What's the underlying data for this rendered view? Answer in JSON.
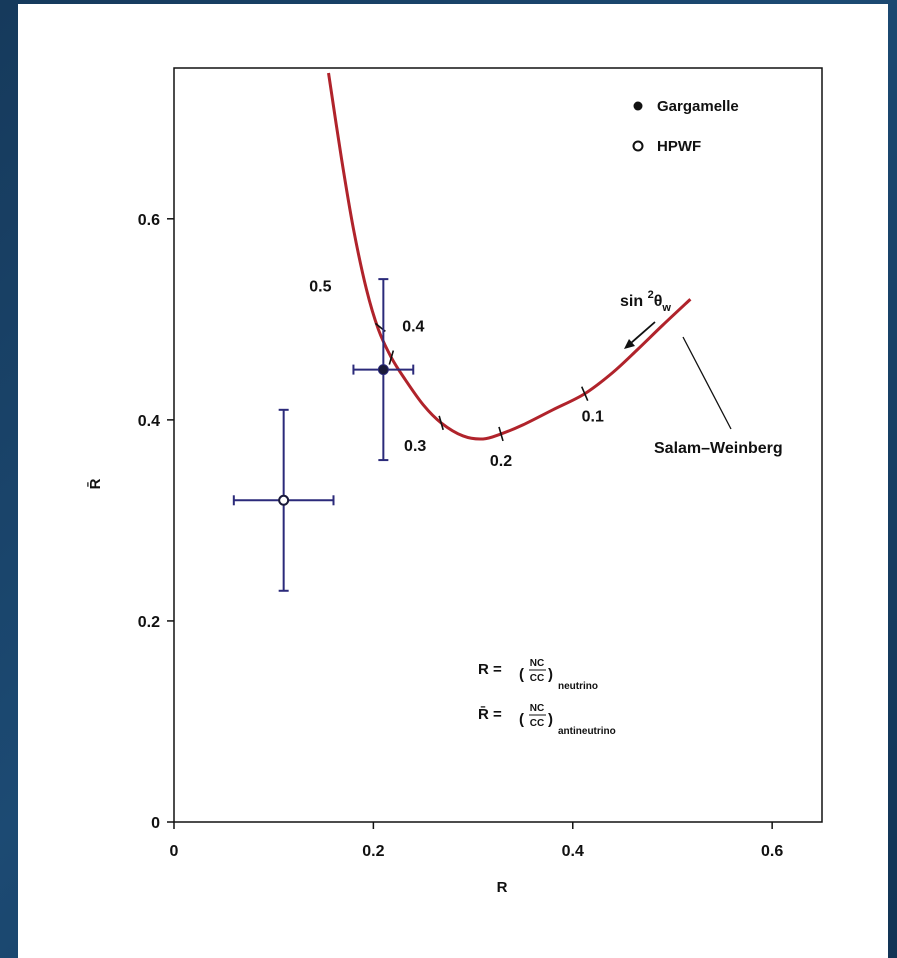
{
  "colors": {
    "curve": "#b0232b",
    "error_bars": "#2b2a7a",
    "axis": "#111111",
    "background": "#ffffff"
  },
  "chart_data": {
    "type": "scatter",
    "xlabel": "R",
    "ylabel": "R̄",
    "xlim": [
      0,
      0.65
    ],
    "ylim": [
      0,
      0.75
    ],
    "xticks": [
      0,
      0.2,
      0.4,
      0.6
    ],
    "yticks": [
      0,
      0.2,
      0.4,
      0.6
    ],
    "xtick_labels": [
      "0",
      "0.2",
      "0.4",
      "0.6"
    ],
    "ytick_labels": [
      "0",
      "0.2",
      "0.4",
      "0.6"
    ],
    "grid": false,
    "legend_position": "top-right",
    "series": [
      {
        "name": "Gargamelle",
        "marker": "filled-circle",
        "points": [
          {
            "x": 0.21,
            "y": 0.45,
            "xerr": 0.03,
            "yerr_low": 0.09,
            "yerr_high": 0.09
          }
        ]
      },
      {
        "name": "HPWF",
        "marker": "open-circle",
        "points": [
          {
            "x": 0.11,
            "y": 0.32,
            "xerr": 0.05,
            "yerr_low": 0.09,
            "yerr_high": 0.09
          }
        ]
      },
      {
        "name": "Salam–Weinberg",
        "type": "line",
        "points": [
          {
            "x": 0.155,
            "y": 0.745
          },
          {
            "x": 0.168,
            "y": 0.66
          },
          {
            "x": 0.18,
            "y": 0.59
          },
          {
            "x": 0.193,
            "y": 0.53
          },
          {
            "x": 0.205,
            "y": 0.49
          },
          {
            "x": 0.218,
            "y": 0.462
          },
          {
            "x": 0.232,
            "y": 0.44
          },
          {
            "x": 0.25,
            "y": 0.415
          },
          {
            "x": 0.268,
            "y": 0.397
          },
          {
            "x": 0.29,
            "y": 0.384
          },
          {
            "x": 0.31,
            "y": 0.381
          },
          {
            "x": 0.328,
            "y": 0.386
          },
          {
            "x": 0.35,
            "y": 0.395
          },
          {
            "x": 0.38,
            "y": 0.41
          },
          {
            "x": 0.412,
            "y": 0.426
          },
          {
            "x": 0.44,
            "y": 0.447
          },
          {
            "x": 0.465,
            "y": 0.47
          },
          {
            "x": 0.49,
            "y": 0.494
          },
          {
            "x": 0.518,
            "y": 0.52
          }
        ]
      }
    ],
    "curve_markers": [
      {
        "label": "0.5",
        "x": 0.205,
        "y": 0.49
      },
      {
        "label": "0.4",
        "x": 0.218,
        "y": 0.462
      },
      {
        "label": "0.3",
        "x": 0.268,
        "y": 0.397
      },
      {
        "label": "0.2",
        "x": 0.328,
        "y": 0.386
      },
      {
        "label": "0.1",
        "x": 0.412,
        "y": 0.426
      }
    ],
    "annotations": {
      "curve_name": "Salam–Weinberg",
      "parameter": "sin ²θw",
      "parameter_main": "sin ",
      "parameter_sup": "2",
      "parameter_theta": "θ",
      "parameter_sub": "w",
      "definition_r_lhs": "R =",
      "definition_r_sub": "neutrino",
      "definition_rbar_lhs": "R̄ =",
      "definition_rbar_sub": "antineutrino",
      "fraction_num": "NC",
      "fraction_den": "CC"
    }
  }
}
